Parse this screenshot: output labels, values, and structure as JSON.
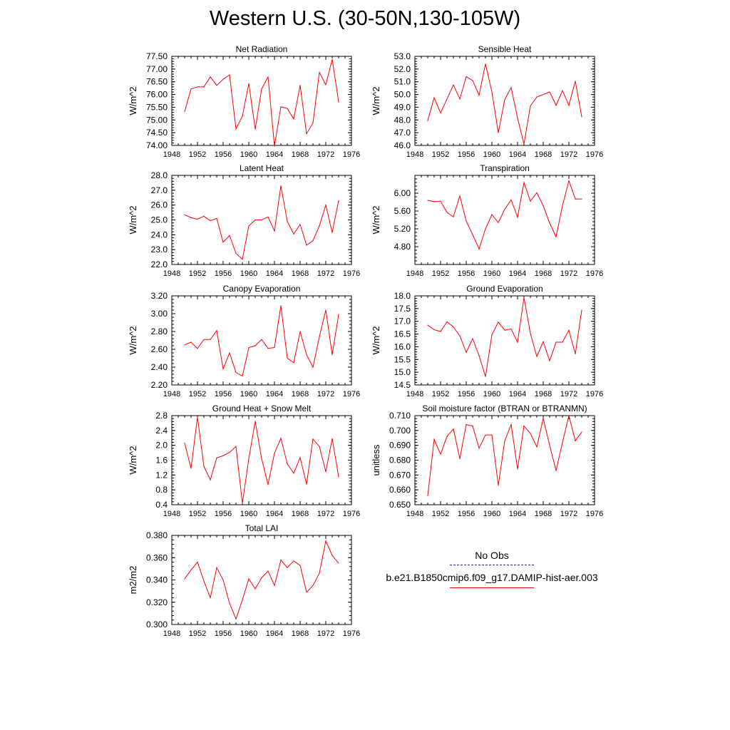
{
  "page": {
    "title": "Western U.S. (30-50N,130-105W)"
  },
  "legend": {
    "obs_label": "No Obs",
    "model_label": "b.e21.B1850cmip6.f09_g17.DAMIP-hist-aer.003",
    "obs_color": "#1e1ea8",
    "model_color": "#ff0000"
  },
  "chart_data": [
    {
      "type": "line",
      "title": "Net Radiation",
      "ylabel": "W/m^2",
      "xlim": [
        1948,
        1976
      ],
      "ylim": [
        74.0,
        77.5
      ],
      "xticks": [
        "1948",
        "1952",
        "1956",
        "1960",
        "1964",
        "1968",
        "1972",
        "1976"
      ],
      "yticks": [
        "74.00",
        "74.50",
        "75.00",
        "75.50",
        "76.00",
        "76.50",
        "77.00",
        "77.50"
      ],
      "x": [
        1950,
        1951,
        1952,
        1953,
        1954,
        1955,
        1956,
        1957,
        1958,
        1959,
        1960,
        1961,
        1962,
        1963,
        1964,
        1965,
        1966,
        1967,
        1968,
        1969,
        1970,
        1971,
        1972,
        1973,
        1974
      ],
      "series": [
        {
          "color": "#ff0000",
          "values": [
            75.33,
            76.22,
            76.3,
            76.3,
            76.69,
            76.36,
            76.6,
            76.77,
            74.65,
            75.15,
            76.43,
            74.64,
            76.22,
            76.69,
            73.97,
            75.52,
            75.45,
            75.04,
            76.36,
            74.46,
            74.88,
            76.87,
            76.38,
            77.38,
            75.71
          ]
        }
      ]
    },
    {
      "type": "line",
      "title": "Sensible Heat",
      "ylabel": "W/m^2",
      "xlim": [
        1948,
        1976
      ],
      "ylim": [
        46.0,
        53.0
      ],
      "xticks": [
        "1948",
        "1952",
        "1956",
        "1960",
        "1964",
        "1968",
        "1972",
        "1976"
      ],
      "yticks": [
        "46.0",
        "47.0",
        "48.0",
        "49.0",
        "50.0",
        "51.0",
        "52.0",
        "53.0"
      ],
      "x": [
        1950,
        1951,
        1952,
        1953,
        1954,
        1955,
        1956,
        1957,
        1958,
        1959,
        1960,
        1961,
        1962,
        1963,
        1964,
        1965,
        1966,
        1967,
        1968,
        1969,
        1970,
        1971,
        1972,
        1973,
        1974
      ],
      "series": [
        {
          "color": "#ff0000",
          "values": [
            47.95,
            49.75,
            48.55,
            49.65,
            50.75,
            49.65,
            51.4,
            51.1,
            49.95,
            52.4,
            50.2,
            47.0,
            49.6,
            50.55,
            48.15,
            46.1,
            49.1,
            49.8,
            50.0,
            50.2,
            49.15,
            50.3,
            49.15,
            51.05,
            48.25
          ]
        }
      ]
    },
    {
      "type": "line",
      "title": "Latent Heat",
      "ylabel": "W/m^2",
      "xlim": [
        1948,
        1976
      ],
      "ylim": [
        22.0,
        28.0
      ],
      "xticks": [
        "1948",
        "1952",
        "1956",
        "1960",
        "1964",
        "1968",
        "1972",
        "1976"
      ],
      "yticks": [
        "22.0",
        "23.0",
        "24.0",
        "25.0",
        "26.0",
        "27.0",
        "28.0"
      ],
      "x": [
        1950,
        1951,
        1952,
        1953,
        1954,
        1955,
        1956,
        1957,
        1958,
        1959,
        1960,
        1961,
        1962,
        1963,
        1964,
        1965,
        1966,
        1967,
        1968,
        1969,
        1970,
        1971,
        1972,
        1973,
        1974
      ],
      "series": [
        {
          "color": "#ff0000",
          "values": [
            25.35,
            25.15,
            25.05,
            25.25,
            24.95,
            25.1,
            23.5,
            23.95,
            22.75,
            22.35,
            24.6,
            25.0,
            25.0,
            25.2,
            24.25,
            27.3,
            24.9,
            24.05,
            24.7,
            23.3,
            23.6,
            24.6,
            26.0,
            24.15,
            26.3
          ]
        }
      ]
    },
    {
      "type": "line",
      "title": "Transpiration",
      "ylabel": "W/m^2",
      "xlim": [
        1948,
        1976
      ],
      "ylim": [
        4.4,
        6.4
      ],
      "xticks": [
        "1948",
        "1952",
        "1956",
        "1960",
        "1964",
        "1968",
        "1972",
        "1976"
      ],
      "yticks": [
        "4.80",
        "5.20",
        "5.60",
        "6.00"
      ],
      "ytick_values": [
        4.8,
        5.2,
        5.6,
        6.0
      ],
      "x": [
        1950,
        1951,
        1952,
        1953,
        1954,
        1955,
        1956,
        1957,
        1958,
        1959,
        1960,
        1961,
        1962,
        1963,
        1964,
        1965,
        1966,
        1967,
        1968,
        1969,
        1970,
        1971,
        1972,
        1973,
        1974
      ],
      "series": [
        {
          "color": "#ff0000",
          "values": [
            5.84,
            5.81,
            5.82,
            5.57,
            5.47,
            5.94,
            5.37,
            5.07,
            4.75,
            5.2,
            5.52,
            5.34,
            5.64,
            5.85,
            5.46,
            6.24,
            5.82,
            6.01,
            5.72,
            5.33,
            5.02,
            5.72,
            6.28,
            5.87,
            5.87
          ]
        }
      ]
    },
    {
      "type": "line",
      "title": "Canopy Evaporation",
      "ylabel": "W/m^2",
      "xlim": [
        1948,
        1976
      ],
      "ylim": [
        2.2,
        3.2
      ],
      "xticks": [
        "1948",
        "1952",
        "1956",
        "1960",
        "1964",
        "1968",
        "1972",
        "1976"
      ],
      "yticks": [
        "2.20",
        "2.40",
        "2.60",
        "2.80",
        "3.00",
        "3.20"
      ],
      "x": [
        1950,
        1951,
        1952,
        1953,
        1954,
        1955,
        1956,
        1957,
        1958,
        1959,
        1960,
        1961,
        1962,
        1963,
        1964,
        1965,
        1966,
        1967,
        1968,
        1969,
        1970,
        1971,
        1972,
        1973,
        1974
      ],
      "series": [
        {
          "color": "#ff0000",
          "values": [
            2.65,
            2.68,
            2.61,
            2.71,
            2.71,
            2.81,
            2.38,
            2.56,
            2.34,
            2.3,
            2.62,
            2.64,
            2.71,
            2.61,
            2.62,
            3.09,
            2.5,
            2.45,
            2.8,
            2.54,
            2.4,
            2.74,
            3.04,
            2.54,
            2.99
          ]
        }
      ]
    },
    {
      "type": "line",
      "title": "Ground Evaporation",
      "ylabel": "W/m^2",
      "xlim": [
        1948,
        1976
      ],
      "ylim": [
        14.5,
        18.0
      ],
      "xticks": [
        "1948",
        "1952",
        "1956",
        "1960",
        "1964",
        "1968",
        "1972",
        "1976"
      ],
      "yticks": [
        "14.5",
        "15.0",
        "15.5",
        "16.0",
        "16.5",
        "17.0",
        "17.5",
        "18.0"
      ],
      "x": [
        1950,
        1951,
        1952,
        1953,
        1954,
        1955,
        1956,
        1957,
        1958,
        1959,
        1960,
        1961,
        1962,
        1963,
        1964,
        1965,
        1966,
        1967,
        1968,
        1969,
        1970,
        1971,
        1972,
        1973,
        1974
      ],
      "series": [
        {
          "color": "#ff0000",
          "values": [
            16.85,
            16.67,
            16.6,
            16.98,
            16.78,
            16.43,
            15.78,
            16.32,
            15.65,
            14.83,
            16.47,
            16.97,
            16.65,
            16.7,
            16.18,
            17.93,
            16.52,
            15.62,
            16.2,
            15.45,
            16.18,
            16.18,
            16.65,
            15.72,
            17.44
          ]
        }
      ]
    },
    {
      "type": "line",
      "title": "Ground Heat + Snow Melt",
      "ylabel": "W/m^2",
      "xlim": [
        1948,
        1976
      ],
      "ylim": [
        0.4,
        2.8
      ],
      "xticks": [
        "1948",
        "1952",
        "1956",
        "1960",
        "1964",
        "1968",
        "1972",
        "1976"
      ],
      "yticks": [
        "0.4",
        "0.8",
        "1.2",
        "1.6",
        "2.0",
        "2.4",
        "2.8"
      ],
      "x": [
        1950,
        1951,
        1952,
        1953,
        1954,
        1955,
        1956,
        1957,
        1958,
        1959,
        1960,
        1961,
        1962,
        1963,
        1964,
        1965,
        1966,
        1967,
        1968,
        1969,
        1970,
        1971,
        1972,
        1973,
        1974
      ],
      "series": [
        {
          "color": "#ff0000",
          "values": [
            2.06,
            1.38,
            2.76,
            1.43,
            1.07,
            1.66,
            1.72,
            1.81,
            1.97,
            0.44,
            1.64,
            2.65,
            1.64,
            0.94,
            1.79,
            2.19,
            1.5,
            1.25,
            1.67,
            0.95,
            2.17,
            1.97,
            1.29,
            2.18,
            1.15
          ]
        }
      ]
    },
    {
      "type": "line",
      "title": "Soil moisture factor (BTRAN or BTRANMN)",
      "ylabel": "unitless",
      "xlim": [
        1948,
        1976
      ],
      "ylim": [
        0.65,
        0.71
      ],
      "xticks": [
        "1948",
        "1952",
        "1956",
        "1960",
        "1964",
        "1968",
        "1972",
        "1976"
      ],
      "yticks": [
        "0.650",
        "0.660",
        "0.670",
        "0.680",
        "0.690",
        "0.700",
        "0.710"
      ],
      "x": [
        1950,
        1951,
        1952,
        1953,
        1954,
        1955,
        1956,
        1957,
        1958,
        1959,
        1960,
        1961,
        1962,
        1963,
        1964,
        1965,
        1966,
        1967,
        1968,
        1969,
        1970,
        1971,
        1972,
        1973,
        1974
      ],
      "series": [
        {
          "color": "#ff0000",
          "values": [
            0.656,
            0.694,
            0.684,
            0.696,
            0.701,
            0.681,
            0.704,
            0.703,
            0.688,
            0.697,
            0.697,
            0.663,
            0.693,
            0.704,
            0.674,
            0.703,
            0.698,
            0.689,
            0.708,
            0.69,
            0.673,
            0.692,
            0.71,
            0.693,
            0.699
          ]
        }
      ]
    },
    {
      "type": "line",
      "title": "Total LAI",
      "ylabel": "m2/m2",
      "xlim": [
        1948,
        1976
      ],
      "ylim": [
        0.3,
        0.38
      ],
      "xticks": [
        "1948",
        "1952",
        "1956",
        "1960",
        "1964",
        "1968",
        "1972",
        "1976"
      ],
      "yticks": [
        "0.300",
        "0.320",
        "0.340",
        "0.360",
        "0.380"
      ],
      "x": [
        1950,
        1951,
        1952,
        1953,
        1954,
        1955,
        1956,
        1957,
        1958,
        1959,
        1960,
        1961,
        1962,
        1963,
        1964,
        1965,
        1966,
        1967,
        1968,
        1969,
        1970,
        1971,
        1972,
        1973,
        1974
      ],
      "series": [
        {
          "color": "#ff0000",
          "values": [
            0.341,
            0.349,
            0.356,
            0.339,
            0.324,
            0.351,
            0.34,
            0.319,
            0.305,
            0.322,
            0.341,
            0.332,
            0.342,
            0.348,
            0.335,
            0.358,
            0.351,
            0.357,
            0.353,
            0.329,
            0.335,
            0.346,
            0.375,
            0.362,
            0.355
          ]
        }
      ]
    }
  ]
}
